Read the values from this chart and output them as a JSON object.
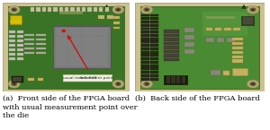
{
  "fig_width": 3.0,
  "fig_height": 1.45,
  "dpi": 100,
  "bg_color": "#ffffff",
  "caption_a": "(a)  Front side of the FPGA board\nwith usual measurement point over\nthe die",
  "caption_b": "(b)  Back side of the FPGA board",
  "caption_fontsize": 6.0,
  "board_green": "#3d7a28",
  "board_green2": "#4a8a32",
  "board_border": "#b8a870",
  "board_border2": "#cfc090",
  "chip_gray": "#7a7a7a",
  "chip_gray2": "#909090",
  "pin_dark": "#2a2a1a",
  "pin_med": "#555544",
  "tan_comp": "#c8b060",
  "yellow_comp": "#d4b800",
  "arrow_red": "#cc1111",
  "ann_bg": "#e8e8d8",
  "white": "#ffffff",
  "shadow": "#2a3a1a"
}
